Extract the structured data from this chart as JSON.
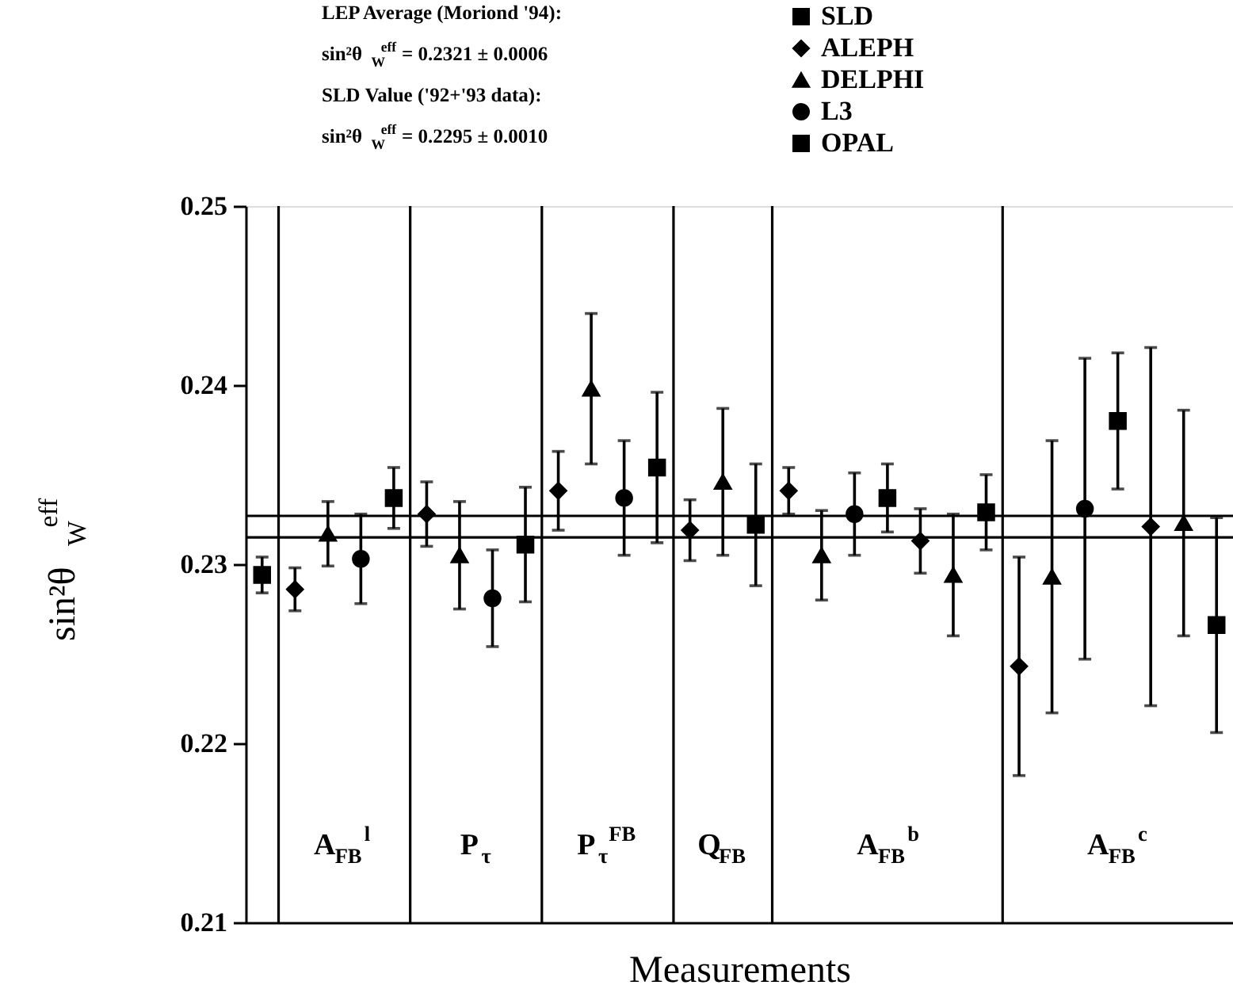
{
  "chart_data": {
    "type": "scatter",
    "xlabel": "Measurements",
    "ylabel": "sin²θ$_{W}$$^{eff}$",
    "annotations": [
      "LEP Average (Moriond '94):",
      "sin²θ$_{W}$$^{eff}$ = 0.2321 ± 0.0006",
      "SLD Value ('92+'93 data):",
      "sin²θ$_{W}$$^{eff}$ = 0.2295 ± 0.0010",
      "A$_{FB}$$^{l}$",
      "P$_{τ}$",
      "P$_{τ}$$^{FB}$",
      "Q$_{FB}$",
      "A$_{FB}$$^{b}$",
      "A$_{FB}$$^{c}$"
    ],
    "categories": [
      null,
      null,
      null,
      null,
      null,
      null,
      null,
      null,
      null,
      null,
      null,
      null,
      null,
      null,
      null,
      null,
      null,
      null,
      null,
      null,
      null,
      null,
      null,
      null,
      null,
      null,
      null,
      null,
      null,
      null
    ],
    "ylim": [
      0.21,
      0.25
    ],
    "yticks": [
      0.21,
      0.22,
      0.23,
      0.24,
      0.25
    ],
    "tick_labels": "y",
    "legend": "top right",
    "ref_lines": [
      {
        "axis": "y",
        "value": 0.2315,
        "color": "#000000"
      },
      {
        "axis": "y",
        "value": 0.2327,
        "color": "#000000"
      }
    ],
    "series": [
      {
        "name": "SLD",
        "color": "#000000",
        "marker": "square",
        "values": [
          0.2294,
          null,
          null,
          null,
          null,
          null,
          null,
          null,
          null,
          null,
          null,
          null,
          null,
          null,
          null,
          null,
          null,
          null,
          null,
          null,
          null,
          null,
          null,
          null,
          null,
          null,
          null,
          null,
          null,
          null
        ],
        "errors": [
          0.001,
          null,
          null,
          null,
          null,
          null,
          null,
          null,
          null,
          null,
          null,
          null,
          null,
          null,
          null,
          null,
          null,
          null,
          null,
          null,
          null,
          null,
          null,
          null,
          null,
          null,
          null,
          null,
          null,
          null
        ]
      },
      {
        "name": "ALEPH",
        "color": "#000000",
        "marker": "diamond",
        "values": [
          null,
          0.2286,
          null,
          null,
          null,
          0.2328,
          null,
          null,
          null,
          0.2341,
          null,
          null,
          null,
          0.2319,
          null,
          null,
          0.2341,
          null,
          null,
          null,
          0.2313,
          null,
          null,
          0.2243,
          null,
          null,
          null,
          0.2321,
          null,
          null
        ],
        "errors": [
          null,
          0.0012,
          null,
          null,
          null,
          0.0018,
          null,
          null,
          null,
          0.0022,
          null,
          null,
          null,
          0.0017,
          null,
          null,
          0.0013,
          null,
          null,
          null,
          0.0018,
          null,
          null,
          0.0061,
          null,
          null,
          null,
          0.01,
          null,
          null
        ]
      },
      {
        "name": "DELPHI",
        "color": "#000000",
        "marker": "triangle",
        "values": [
          null,
          null,
          0.2317,
          null,
          null,
          null,
          0.2305,
          null,
          null,
          null,
          0.2398,
          null,
          null,
          null,
          0.2346,
          null,
          null,
          0.2305,
          null,
          null,
          null,
          0.2294,
          null,
          null,
          0.2293,
          null,
          null,
          null,
          0.2323,
          null
        ],
        "errors": [
          null,
          null,
          0.0018,
          null,
          null,
          null,
          0.003,
          null,
          null,
          null,
          0.0042,
          null,
          null,
          null,
          0.0041,
          null,
          null,
          0.0025,
          null,
          null,
          null,
          0.0034,
          null,
          null,
          0.0076,
          null,
          null,
          null,
          0.0063,
          null
        ]
      },
      {
        "name": "L3",
        "color": "#000000",
        "marker": "circle",
        "values": [
          null,
          null,
          null,
          0.2303,
          null,
          null,
          null,
          0.2281,
          null,
          null,
          null,
          0.2337,
          null,
          null,
          null,
          null,
          null,
          null,
          0.2328,
          null,
          null,
          null,
          null,
          null,
          null,
          0.2331,
          null,
          null,
          null,
          null
        ],
        "errors": [
          null,
          null,
          null,
          0.0025,
          null,
          null,
          null,
          0.0027,
          null,
          null,
          null,
          0.0032,
          null,
          null,
          null,
          null,
          null,
          null,
          0.0023,
          null,
          null,
          null,
          null,
          null,
          null,
          0.0084,
          null,
          null,
          null,
          null
        ]
      },
      {
        "name": "OPAL",
        "color": "#000000",
        "marker": "square",
        "values": [
          null,
          null,
          null,
          null,
          0.2337,
          null,
          null,
          null,
          0.2311,
          null,
          null,
          null,
          0.2354,
          null,
          null,
          0.2322,
          null,
          null,
          null,
          0.2337,
          null,
          null,
          0.2329,
          null,
          null,
          null,
          0.238,
          null,
          null,
          0.2266
        ],
        "errors": [
          null,
          null,
          null,
          null,
          0.0017,
          null,
          null,
          null,
          0.0032,
          null,
          null,
          null,
          0.0042,
          null,
          null,
          0.0034,
          null,
          null,
          null,
          0.0019,
          null,
          null,
          0.0021,
          null,
          null,
          null,
          0.0038,
          null,
          null,
          0.006
        ]
      }
    ]
  }
}
